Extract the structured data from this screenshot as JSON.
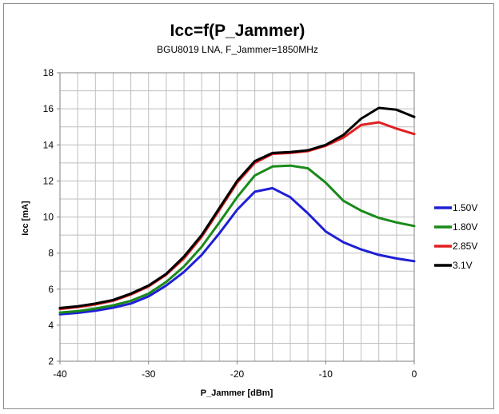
{
  "chart_data": {
    "type": "line",
    "title": "Icc=f(P_Jammer)",
    "subtitle": "BGU8019 LNA, F_Jammer=1850MHz",
    "xlabel": "P_Jammer [dBm]",
    "ylabel": "Icc [mA]",
    "xlim": [
      -40,
      0
    ],
    "ylim": [
      2,
      18
    ],
    "xticks": [
      -40,
      -30,
      -20,
      -10,
      0
    ],
    "yticks": [
      2,
      4,
      6,
      8,
      10,
      12,
      14,
      16,
      18
    ],
    "grid": true,
    "legend_position": "right",
    "x": [
      -40,
      -38,
      -36,
      -34,
      -32,
      -30,
      -28,
      -26,
      -24,
      -22,
      -20,
      -18,
      -16,
      -14,
      -12,
      -10,
      -8,
      -6,
      -4,
      -2,
      0
    ],
    "series": [
      {
        "name": "1.50V",
        "color": "#1f1fd6",
        "values": [
          4.6,
          4.68,
          4.8,
          4.97,
          5.2,
          5.6,
          6.2,
          6.95,
          7.9,
          9.1,
          10.4,
          11.4,
          11.6,
          11.1,
          10.2,
          9.2,
          8.6,
          8.2,
          7.9,
          7.7,
          7.55
        ]
      },
      {
        "name": "1.80V",
        "color": "#1a8a1a",
        "values": [
          4.7,
          4.78,
          4.92,
          5.1,
          5.35,
          5.75,
          6.4,
          7.25,
          8.35,
          9.7,
          11.1,
          12.3,
          12.8,
          12.85,
          12.7,
          11.9,
          10.9,
          10.35,
          9.95,
          9.7,
          9.5
        ]
      },
      {
        "name": "2.85V",
        "color": "#e01f1f",
        "values": [
          4.9,
          5.0,
          5.15,
          5.35,
          5.7,
          6.15,
          6.8,
          7.7,
          8.9,
          10.4,
          11.9,
          13.0,
          13.5,
          13.55,
          13.65,
          13.95,
          14.4,
          15.1,
          15.25,
          14.9,
          14.6
        ]
      },
      {
        "name": "3.1V",
        "color": "#000000",
        "values": [
          4.95,
          5.05,
          5.2,
          5.4,
          5.75,
          6.2,
          6.85,
          7.8,
          9.0,
          10.5,
          12.0,
          13.1,
          13.55,
          13.6,
          13.7,
          14.0,
          14.55,
          15.45,
          16.05,
          15.95,
          15.55
        ]
      }
    ]
  }
}
